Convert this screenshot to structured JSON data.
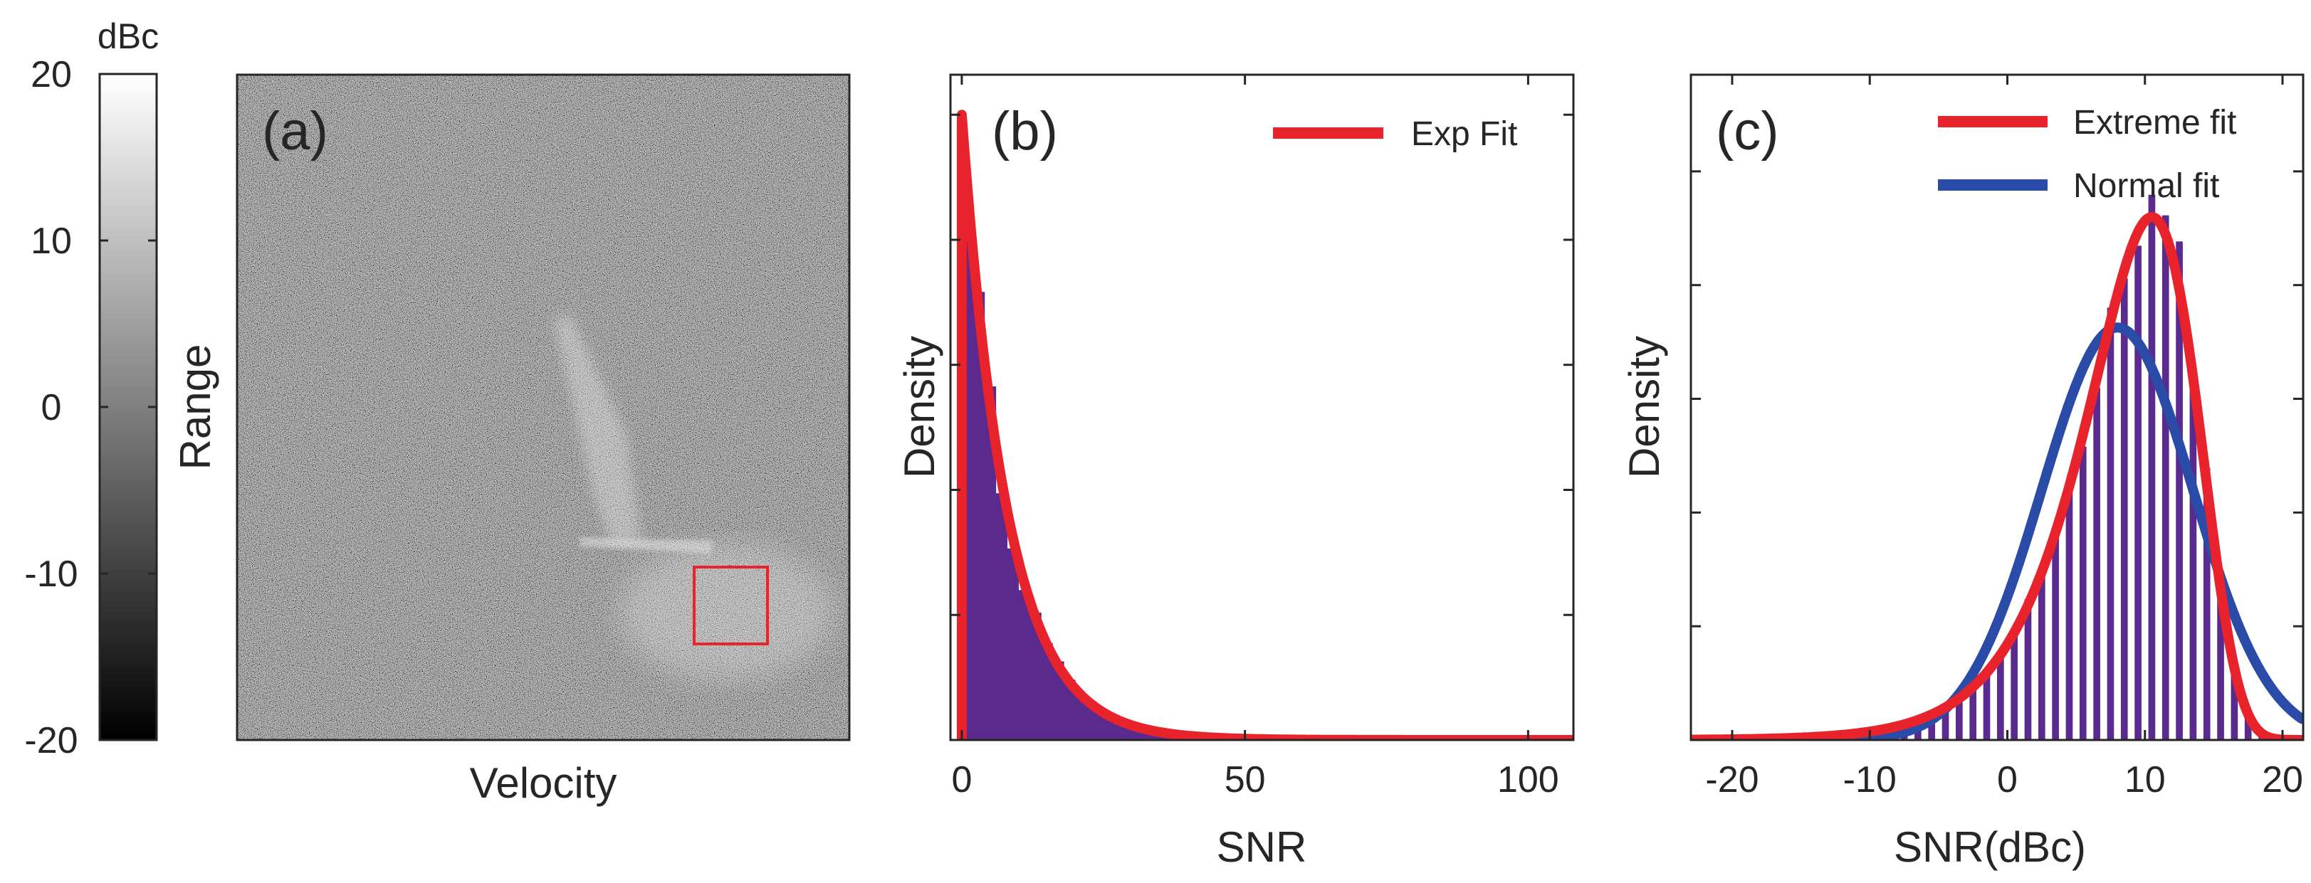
{
  "colorbar": {
    "unit_label": "dBc",
    "range": [
      -20,
      20
    ],
    "ticks": [
      20,
      10,
      0,
      -10,
      -20
    ],
    "tick_labels": [
      "20",
      "10",
      "0",
      "-10",
      "-20"
    ],
    "color_low": "#000000",
    "color_high": "#ffffff"
  },
  "chart_data": [
    {
      "type": "heatmap",
      "panel_label": "(a)",
      "xlabel": "Velocity",
      "ylabel": "Range",
      "colormap": "gray",
      "value_range_dbc": [
        -20,
        20
      ],
      "highlight_box_color": "#e8232b",
      "features": [
        {
          "name": "background noise",
          "level_dbc": 0
        },
        {
          "name": "diagonal streak",
          "level_dbc": 12
        },
        {
          "name": "horizontal streak",
          "level_dbc": 14
        },
        {
          "name": "bright blob (boxed)",
          "level_dbc": 10
        }
      ]
    },
    {
      "type": "bar",
      "panel_label": "(b)",
      "title": "",
      "xlabel": "SNR",
      "ylabel": "Density",
      "xlim": [
        -2,
        108
      ],
      "ylim": [
        0,
        0.133
      ],
      "xticks": [
        0,
        50,
        100
      ],
      "xtick_labels": [
        "0",
        "50",
        "100"
      ],
      "bin_width": 2,
      "bar_color": "#5b2a8e",
      "fit": {
        "name": "Exp Fit",
        "color": "#e8232b",
        "distribution": "exponential",
        "mean": 8.0
      },
      "legend": [
        "Exp Fit"
      ],
      "legend_position": "top-right"
    },
    {
      "type": "bar",
      "panel_label": "(c)",
      "title": "",
      "xlabel": "SNR(dBc)",
      "ylabel": "Density",
      "xlim": [
        -23,
        21.5
      ],
      "ylim": [
        0,
        0.117
      ],
      "xticks": [
        -20,
        -10,
        0,
        10,
        20
      ],
      "xtick_labels": [
        "-20",
        "-10",
        "0",
        "10",
        "20"
      ],
      "bin_width": 1,
      "bar_color": "#5b2a8e",
      "fits": [
        {
          "name": "Extreme fit",
          "color": "#e8232b",
          "distribution": "gumbel-min",
          "location": 10.5,
          "scale": 4.0
        },
        {
          "name": "Normal fit",
          "color": "#2b4ba8",
          "distribution": "normal",
          "mean": 8.0,
          "sd": 5.5
        }
      ],
      "legend": [
        "Extreme fit",
        "Normal fit"
      ],
      "legend_position": "top-right"
    }
  ]
}
